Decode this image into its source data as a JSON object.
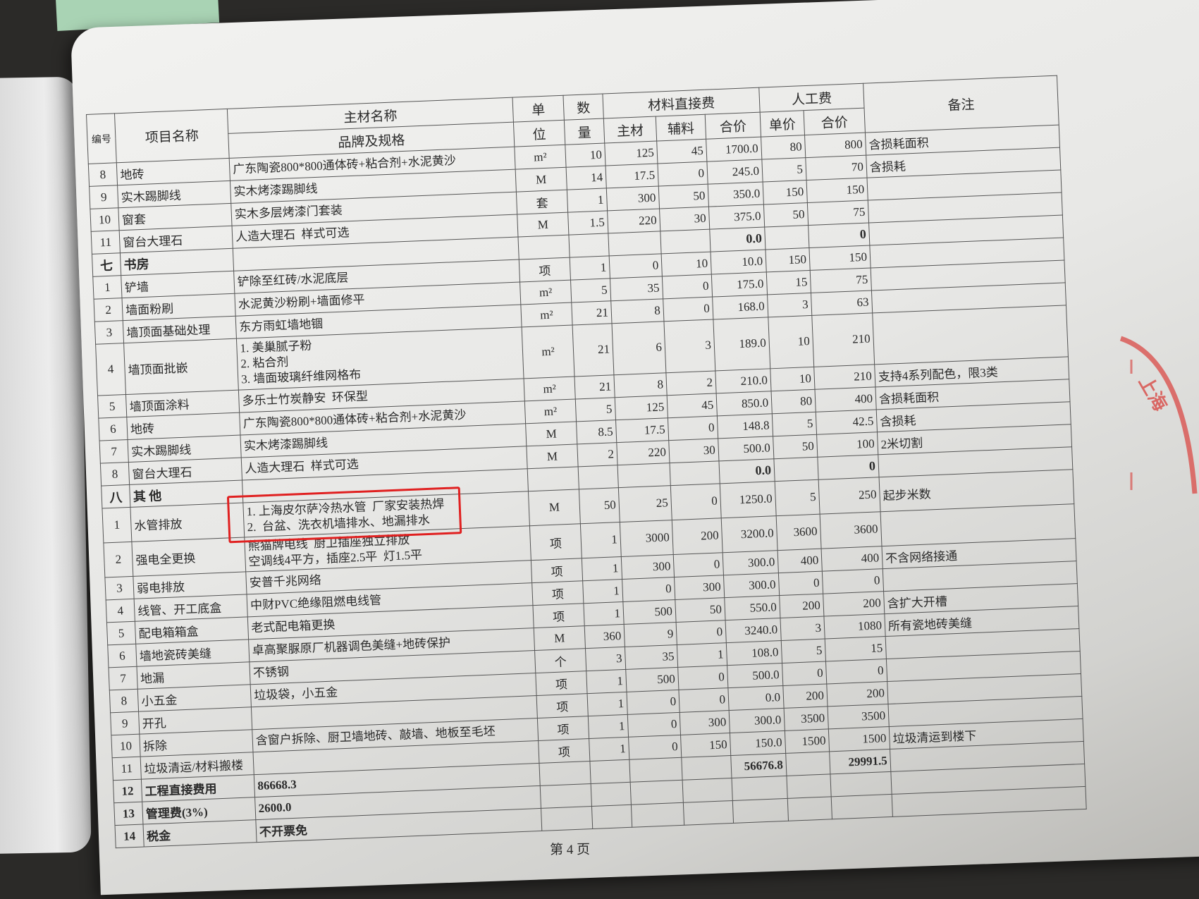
{
  "header": {
    "no": "编号",
    "item": "项目名称",
    "material_name": "主材名称",
    "brand_spec": "品牌及规格",
    "unit_top": "单",
    "unit_bottom": "位",
    "qty_top": "数",
    "qty_bottom": "量",
    "material_cost": "材料直接费",
    "main_material": "主材",
    "aux_material": "辅料",
    "material_total": "合价",
    "labor": "人工费",
    "labor_unit": "单价",
    "labor_total": "合价",
    "remark": "备注"
  },
  "rows": [
    {
      "no": "8",
      "item": "地砖",
      "spec": "广东陶瓷800*800通体砖+粘合剂+水泥黄沙",
      "unit": "m²",
      "qty": "10",
      "main": "125",
      "aux": "45",
      "mtotal": "1700.0",
      "lunit": "80",
      "ltotal": "800",
      "remark": "含损耗面积"
    },
    {
      "no": "9",
      "item": "实木踢脚线",
      "spec": "实木烤漆踢脚线",
      "unit": "M",
      "qty": "14",
      "main": "17.5",
      "aux": "0",
      "mtotal": "245.0",
      "lunit": "5",
      "ltotal": "70",
      "remark": "含损耗"
    },
    {
      "no": "10",
      "item": "窗套",
      "spec": "实木多层烤漆门套装",
      "unit": "套",
      "qty": "1",
      "main": "300",
      "aux": "50",
      "mtotal": "350.0",
      "lunit": "150",
      "ltotal": "150",
      "remark": ""
    },
    {
      "no": "11",
      "item": "窗台大理石",
      "spec": "人造大理石  样式可选",
      "unit": "M",
      "qty": "1.5",
      "main": "220",
      "aux": "30",
      "mtotal": "375.0",
      "lunit": "50",
      "ltotal": "75",
      "remark": ""
    },
    {
      "no": "七",
      "item": "书房",
      "spec": "",
      "unit": "",
      "qty": "",
      "main": "",
      "aux": "",
      "mtotal": "0.0",
      "lunit": "",
      "ltotal": "0",
      "remark": "",
      "section": true
    },
    {
      "no": "1",
      "item": "铲墙",
      "spec": "铲除至红砖/水泥底层",
      "unit": "项",
      "qty": "1",
      "main": "0",
      "aux": "10",
      "mtotal": "10.0",
      "lunit": "150",
      "ltotal": "150",
      "remark": ""
    },
    {
      "no": "2",
      "item": "墙面粉刷",
      "spec": "水泥黄沙粉刷+墙面修平",
      "unit": "m²",
      "qty": "5",
      "main": "35",
      "aux": "0",
      "mtotal": "175.0",
      "lunit": "15",
      "ltotal": "75",
      "remark": ""
    },
    {
      "no": "3",
      "item": "墙顶面基础处理",
      "spec": "东方雨虹墙地锢",
      "unit": "m²",
      "qty": "21",
      "main": "8",
      "aux": "0",
      "mtotal": "168.0",
      "lunit": "3",
      "ltotal": "63",
      "remark": ""
    },
    {
      "no": "4",
      "item": "墙顶面批嵌",
      "spec": "1. 美巢腻子粉\n2. 粘合剂\n3. 墙面玻璃纤维网格布",
      "unit": "m²",
      "qty": "21",
      "main": "6",
      "aux": "3",
      "mtotal": "189.0",
      "lunit": "10",
      "ltotal": "210",
      "remark": "",
      "height": "tall"
    },
    {
      "no": "5",
      "item": "墙顶面涂料",
      "spec": "多乐士竹炭静安  环保型",
      "unit": "m²",
      "qty": "21",
      "main": "8",
      "aux": "2",
      "mtotal": "210.0",
      "lunit": "10",
      "ltotal": "210",
      "remark": "支持4系列配色，限3类"
    },
    {
      "no": "6",
      "item": "地砖",
      "spec": "广东陶瓷800*800通体砖+粘合剂+水泥黄沙",
      "unit": "m²",
      "qty": "5",
      "main": "125",
      "aux": "45",
      "mtotal": "850.0",
      "lunit": "80",
      "ltotal": "400",
      "remark": "含损耗面积"
    },
    {
      "no": "7",
      "item": "实木踢脚线",
      "spec": "实木烤漆踢脚线",
      "unit": "M",
      "qty": "8.5",
      "main": "17.5",
      "aux": "0",
      "mtotal": "148.8",
      "lunit": "5",
      "ltotal": "42.5",
      "remark": "含损耗"
    },
    {
      "no": "8",
      "item": "窗台大理石",
      "spec": "人造大理石  样式可选",
      "unit": "M",
      "qty": "2",
      "main": "220",
      "aux": "30",
      "mtotal": "500.0",
      "lunit": "50",
      "ltotal": "100",
      "remark": "2米切割"
    },
    {
      "no": "八",
      "item": "其  他",
      "spec": "",
      "unit": "",
      "qty": "",
      "main": "",
      "aux": "",
      "mtotal": "0.0",
      "lunit": "",
      "ltotal": "0",
      "remark": "",
      "section": true
    },
    {
      "no": "1",
      "item": "水管排放",
      "spec": "1. 上海皮尔萨冷热水管  厂家安装热焊\n2.  台盆、洗衣机墙排水、地漏排水",
      "unit": "M",
      "qty": "50",
      "main": "25",
      "aux": "0",
      "mtotal": "1250.0",
      "lunit": "5",
      "ltotal": "250",
      "remark": "起步米数",
      "height": "mid",
      "highlight": true
    },
    {
      "no": "2",
      "item": "强电全更换",
      "spec": "熊猫牌电线  厨卫插座独立排放\n空调线4平方，插座2.5平  灯1.5平",
      "unit": "项",
      "qty": "1",
      "main": "3000",
      "aux": "200",
      "mtotal": "3200.0",
      "lunit": "3600",
      "ltotal": "3600",
      "remark": "",
      "height": "mid"
    },
    {
      "no": "3",
      "item": "弱电排放",
      "spec": "安普千兆网络",
      "unit": "项",
      "qty": "1",
      "main": "300",
      "aux": "0",
      "mtotal": "300.0",
      "lunit": "400",
      "ltotal": "400",
      "remark": "不含网络接通"
    },
    {
      "no": "4",
      "item": "线管、开工底盒",
      "spec": "中财PVC绝缘阻燃电线管",
      "unit": "项",
      "qty": "1",
      "main": "0",
      "aux": "300",
      "mtotal": "300.0",
      "lunit": "0",
      "ltotal": "0",
      "remark": ""
    },
    {
      "no": "5",
      "item": "配电箱箱盒",
      "spec": "老式配电箱更换",
      "unit": "项",
      "qty": "1",
      "main": "500",
      "aux": "50",
      "mtotal": "550.0",
      "lunit": "200",
      "ltotal": "200",
      "remark": "含扩大开槽"
    },
    {
      "no": "6",
      "item": "墙地瓷砖美缝",
      "spec": "卓高聚脲原厂机器调色美缝+地砖保护",
      "unit": "M",
      "qty": "360",
      "main": "9",
      "aux": "0",
      "mtotal": "3240.0",
      "lunit": "3",
      "ltotal": "1080",
      "remark": "所有瓷地砖美缝"
    },
    {
      "no": "7",
      "item": "地漏",
      "spec": "不锈钢",
      "unit": "个",
      "qty": "3",
      "main": "35",
      "aux": "1",
      "mtotal": "108.0",
      "lunit": "5",
      "ltotal": "15",
      "remark": ""
    },
    {
      "no": "8",
      "item": "小五金",
      "spec": "垃圾袋，小五金",
      "unit": "项",
      "qty": "1",
      "main": "500",
      "aux": "0",
      "mtotal": "500.0",
      "lunit": "0",
      "ltotal": "0",
      "remark": ""
    },
    {
      "no": "9",
      "item": "开孔",
      "spec": "",
      "unit": "项",
      "qty": "1",
      "main": "0",
      "aux": "0",
      "mtotal": "0.0",
      "lunit": "200",
      "ltotal": "200",
      "remark": ""
    },
    {
      "no": "10",
      "item": "拆除",
      "spec": "含窗户拆除、厨卫墙地砖、敲墙、地板至毛坯",
      "unit": "项",
      "qty": "1",
      "main": "0",
      "aux": "300",
      "mtotal": "300.0",
      "lunit": "3500",
      "ltotal": "3500",
      "remark": ""
    },
    {
      "no": "11",
      "item": "垃圾清运/材料搬楼",
      "spec": "",
      "unit": "项",
      "qty": "1",
      "main": "0",
      "aux": "150",
      "mtotal": "150.0",
      "lunit": "1500",
      "ltotal": "1500",
      "remark": "垃圾清运到楼下"
    },
    {
      "no": "12",
      "item": "工程直接费用",
      "spec": "86668.3",
      "unit": "",
      "qty": "",
      "main": "",
      "aux": "",
      "mtotal": "56676.8",
      "lunit": "",
      "ltotal": "29991.5",
      "remark": "",
      "total": true
    },
    {
      "no": "13",
      "item": "管理费(3%)",
      "spec": "2600.0",
      "unit": "",
      "qty": "",
      "main": "",
      "aux": "",
      "mtotal": "",
      "lunit": "",
      "ltotal": "",
      "remark": "",
      "total": true
    },
    {
      "no": "14",
      "item": "税金",
      "spec": "不开票免",
      "unit": "",
      "qty": "",
      "main": "",
      "aux": "",
      "mtotal": "",
      "lunit": "",
      "ltotal": "",
      "remark": "",
      "total": true
    }
  ],
  "footer": {
    "page": "第 4 页"
  },
  "stamp": {
    "text": "上海"
  },
  "colors": {
    "highlight_box": "#e02020",
    "stamp": "#d9534f"
  }
}
